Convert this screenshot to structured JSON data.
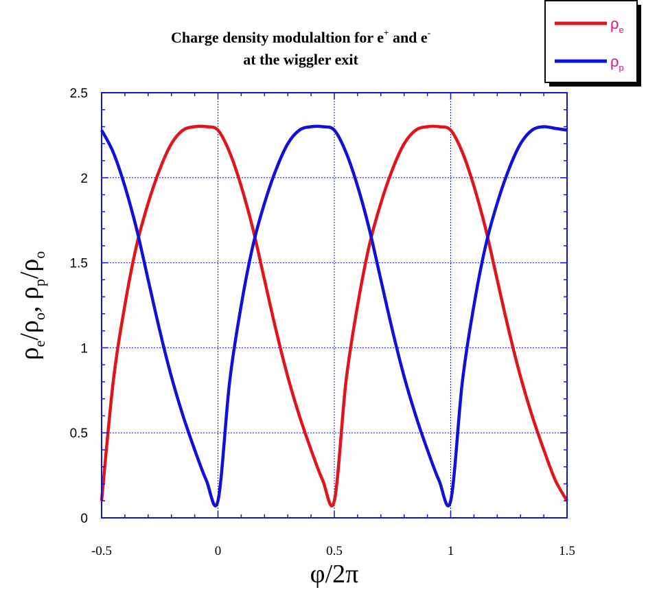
{
  "chart_data": {
    "type": "line",
    "title_line1": "Charge density modulaltion for e",
    "title_sup1": "+",
    "title_mid": " and e",
    "title_sup2": "-",
    "title_line2": "at the wiggler exit",
    "xlabel": "φ/2π",
    "ylabel": {
      "p1": "ρ",
      "s1": "e",
      "p2": "/ρ",
      "s2": "o",
      "p3": ", ρ",
      "s3": "p",
      "p4": "/ρ",
      "s4": "o"
    },
    "xlim": [
      -0.5,
      1.5
    ],
    "ylim": [
      0,
      2.5
    ],
    "x_ticks": [
      "-0.5",
      "0",
      "0.5",
      "1",
      "1.5"
    ],
    "y_ticks": [
      "0",
      "0.5",
      "1",
      "1.5",
      "2",
      "2.5"
    ],
    "grid": true,
    "legend_position": "top-right",
    "series": [
      {
        "name": "ρ",
        "name_sub": "e",
        "color": "#e0141b",
        "x": [
          -0.5,
          -0.45,
          -0.4,
          -0.35,
          -0.3,
          -0.25,
          -0.2,
          -0.15,
          -0.1,
          -0.05,
          0,
          0.05,
          0.1,
          0.15,
          0.2,
          0.25,
          0.3,
          0.35,
          0.4,
          0.45,
          0.5,
          0.55,
          0.6,
          0.65,
          0.7,
          0.75,
          0.8,
          0.85,
          0.9,
          0.95,
          1,
          1.05,
          1.1,
          1.15,
          1.2,
          1.25,
          1.3,
          1.35,
          1.4,
          1.45,
          1.5
        ],
        "values": [
          0.1,
          0.8,
          1.25,
          1.6,
          1.85,
          2.05,
          2.2,
          2.28,
          2.3,
          2.3,
          2.28,
          2.15,
          1.95,
          1.7,
          1.4,
          1.1,
          0.83,
          0.6,
          0.4,
          0.22,
          0.1,
          0.8,
          1.25,
          1.6,
          1.85,
          2.05,
          2.2,
          2.28,
          2.3,
          2.3,
          2.28,
          2.15,
          1.95,
          1.7,
          1.4,
          1.1,
          0.83,
          0.6,
          0.4,
          0.22,
          0.1
        ]
      },
      {
        "name": "ρ",
        "name_sub": "p",
        "color": "#1010d8",
        "x": [
          -0.5,
          -0.45,
          -0.4,
          -0.35,
          -0.3,
          -0.25,
          -0.2,
          -0.15,
          -0.1,
          -0.05,
          0,
          0.05,
          0.1,
          0.15,
          0.2,
          0.25,
          0.3,
          0.35,
          0.4,
          0.45,
          0.5,
          0.55,
          0.6,
          0.65,
          0.7,
          0.75,
          0.8,
          0.85,
          0.9,
          0.95,
          1,
          1.05,
          1.1,
          1.15,
          1.2,
          1.25,
          1.3,
          1.35,
          1.4,
          1.45,
          1.5
        ],
        "values": [
          2.28,
          2.15,
          1.95,
          1.7,
          1.4,
          1.1,
          0.83,
          0.6,
          0.4,
          0.22,
          0.1,
          0.8,
          1.25,
          1.6,
          1.85,
          2.05,
          2.2,
          2.28,
          2.3,
          2.3,
          2.28,
          2.15,
          1.95,
          1.7,
          1.4,
          1.1,
          0.83,
          0.6,
          0.4,
          0.22,
          0.1,
          0.8,
          1.25,
          1.6,
          1.85,
          2.05,
          2.2,
          2.28,
          2.3,
          2.29,
          2.28
        ]
      }
    ]
  }
}
